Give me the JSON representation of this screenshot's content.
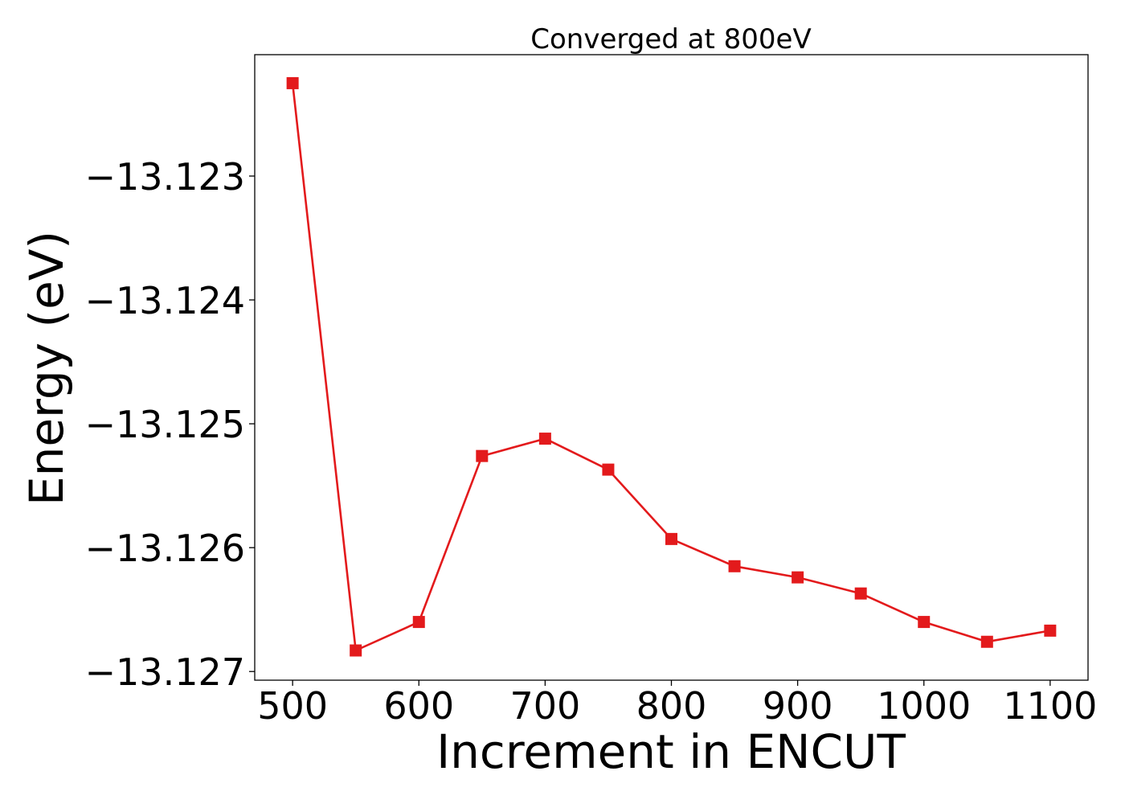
{
  "chart_data": {
    "type": "line",
    "title": "Converged at 800eV",
    "xlabel": "Increment in ENCUT",
    "ylabel": "Energy (eV)",
    "xlim": [
      470,
      1130
    ],
    "ylim": [
      -13.12707,
      -13.12202
    ],
    "x_ticks": [
      500,
      600,
      700,
      800,
      900,
      1000,
      1100
    ],
    "x_tick_labels": [
      "500",
      "600",
      "700",
      "800",
      "900",
      "1000",
      "1100"
    ],
    "y_ticks": [
      -13.123,
      -13.124,
      -13.125,
      -13.126,
      -13.127
    ],
    "y_tick_labels": [
      "−13.123",
      "−13.124",
      "−13.125",
      "−13.126",
      "−13.127"
    ],
    "grid": false,
    "legend": "none",
    "series": [
      {
        "color": "#e31a1c",
        "marker": "square",
        "x": [
          500,
          550,
          600,
          650,
          700,
          750,
          800,
          850,
          900,
          950,
          1000,
          1050,
          1100
        ],
        "y": [
          -13.12225,
          -13.12683,
          -13.1266,
          -13.12526,
          -13.12512,
          -13.12537,
          -13.12593,
          -13.12615,
          -13.12624,
          -13.12637,
          -13.1266,
          -13.12676,
          -13.12667
        ]
      }
    ]
  }
}
